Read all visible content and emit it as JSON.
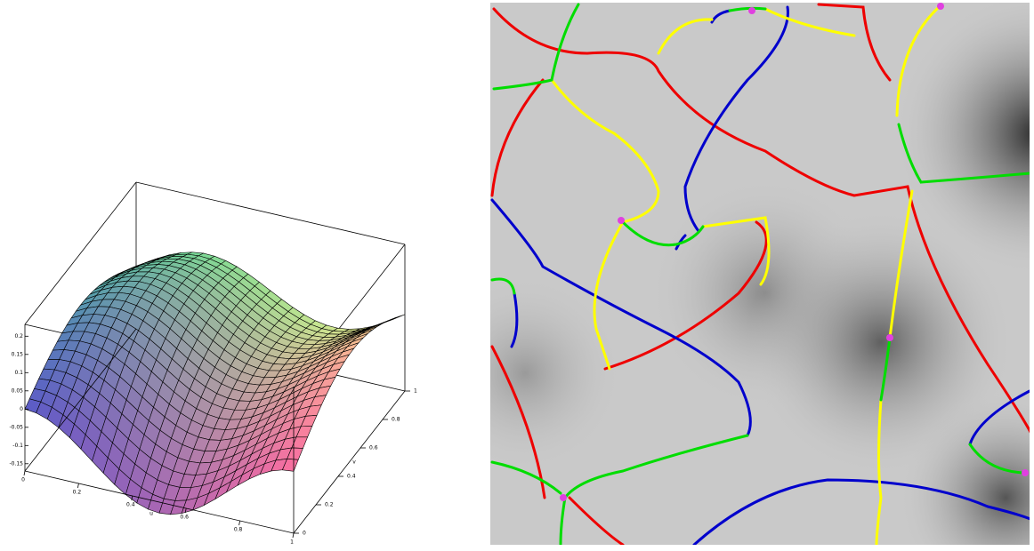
{
  "surface_plot": {
    "z_ticks": [
      "0.2",
      "0.15",
      "0.1",
      "0.05",
      "0",
      "-0.05",
      "-0.1",
      "-0.15"
    ],
    "u_ticks": [
      "0",
      "0.2",
      "0.4",
      "0.6",
      "0.8",
      "1"
    ],
    "v_ticks": [
      "0",
      "0.2",
      "0.4",
      "0.6",
      "0.8",
      "1"
    ],
    "u_label": "u",
    "v_label": "v"
  }
}
